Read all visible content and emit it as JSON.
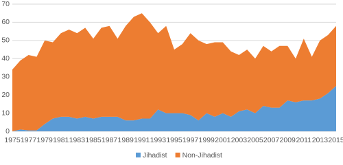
{
  "chart_data": {
    "type": "stacked_area",
    "categories": [
      1975,
      null,
      1977,
      null,
      1979,
      null,
      1981,
      null,
      1983,
      null,
      1985,
      null,
      1987,
      null,
      1989,
      null,
      1991,
      null,
      1993,
      null,
      1995,
      null,
      1997,
      null,
      1999,
      null,
      2001,
      null,
      2003,
      null,
      2005,
      null,
      2007,
      null,
      2009,
      null,
      2011,
      null,
      2013,
      null,
      2015
    ],
    "series": [
      {
        "name": "Jihadist",
        "color": "#5b9bd5",
        "values": [
          0,
          1,
          0.5,
          0.5,
          4,
          7,
          8,
          8,
          7,
          8,
          7,
          8,
          8,
          8,
          6,
          6,
          7,
          7,
          12,
          10,
          10,
          10,
          9,
          6,
          10,
          8,
          10,
          8,
          11,
          12,
          10,
          14,
          13,
          13,
          17,
          16,
          17,
          17,
          18,
          21,
          25
        ]
      },
      {
        "name": "Non-Jihadist",
        "color": "#ed7d31",
        "values": [
          34,
          38,
          41.5,
          40.5,
          46,
          42,
          46,
          48,
          47,
          49,
          44,
          49,
          50,
          43,
          52,
          57,
          58,
          53,
          42,
          48,
          35,
          38,
          45,
          44,
          38,
          41,
          39,
          36,
          31,
          33,
          30,
          33,
          31,
          34,
          30,
          24,
          34,
          24,
          32,
          32,
          33
        ]
      }
    ],
    "ylim": [
      0,
      70
    ],
    "yticks": [
      0,
      10,
      20,
      30,
      40,
      50,
      60,
      70
    ],
    "grid": true,
    "legend": "bottom"
  }
}
